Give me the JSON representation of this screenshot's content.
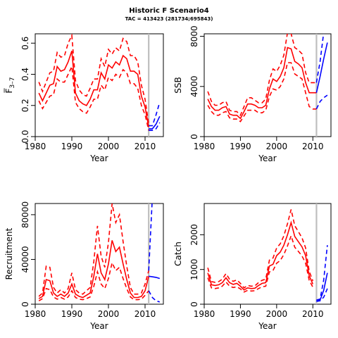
{
  "title": "Historic F Scenario4",
  "subtitle": "TAC = 413423 (281734;695843)",
  "colors": {
    "historic": "#ff0000",
    "projection": "#0000ff",
    "divider": "#bebebe"
  },
  "chart_data": [
    {
      "type": "line",
      "xlabel": "Year",
      "ylabel": "F̅",
      "ylabel_sub": "3–7",
      "xlim": [
        1980,
        2015
      ],
      "ylim": [
        0,
        0.66
      ],
      "xticks": [
        "1980",
        "1990",
        "2000",
        "2010"
      ],
      "yticks": [
        "0.0",
        "0.2",
        "0.4",
        "0.6"
      ],
      "divider_year": 2011,
      "x": [
        1981,
        1982,
        1983,
        1984,
        1985,
        1986,
        1987,
        1988,
        1989,
        1990,
        1991,
        1992,
        1993,
        1994,
        1995,
        1996,
        1997,
        1998,
        1999,
        2000,
        2001,
        2002,
        2003,
        2004,
        2005,
        2006,
        2007,
        2008,
        2009,
        2010,
        2011
      ],
      "series": [
        {
          "values": [
            0.28,
            0.23,
            0.28,
            0.33,
            0.34,
            0.45,
            0.42,
            0.43,
            0.48,
            0.55,
            0.28,
            0.23,
            0.21,
            0.2,
            0.24,
            0.3,
            0.3,
            0.41,
            0.37,
            0.46,
            0.44,
            0.48,
            0.46,
            0.52,
            0.5,
            0.42,
            0.42,
            0.4,
            0.26,
            0.19,
            0.06
          ]
        },
        {
          "values": [
            0.35,
            0.29,
            0.35,
            0.41,
            0.42,
            0.54,
            0.51,
            0.52,
            0.6,
            0.65,
            0.36,
            0.3,
            0.27,
            0.26,
            0.31,
            0.37,
            0.37,
            0.5,
            0.45,
            0.56,
            0.53,
            0.57,
            0.55,
            0.63,
            0.61,
            0.52,
            0.52,
            0.48,
            0.33,
            0.24,
            0.08
          ]
        },
        {
          "values": [
            0.23,
            0.18,
            0.22,
            0.26,
            0.27,
            0.37,
            0.35,
            0.35,
            0.4,
            0.45,
            0.22,
            0.18,
            0.16,
            0.15,
            0.19,
            0.24,
            0.24,
            0.33,
            0.3,
            0.38,
            0.36,
            0.4,
            0.38,
            0.43,
            0.41,
            0.34,
            0.34,
            0.31,
            0.2,
            0.14,
            0.04
          ]
        }
      ],
      "projection_x": [
        2011,
        2012,
        2013,
        2014
      ],
      "projection": [
        {
          "values": [
            0.05,
            0.05,
            0.08,
            0.13
          ]
        },
        {
          "values": [
            0.07,
            0.07,
            0.14,
            0.22
          ]
        },
        {
          "values": [
            0.04,
            0.04,
            0.05,
            0.09
          ]
        }
      ]
    },
    {
      "type": "line",
      "xlabel": "Year",
      "ylabel": "SSB",
      "xlim": [
        1980,
        2015
      ],
      "ylim": [
        0,
        8200
      ],
      "xticks": [
        "1980",
        "1990",
        "2000",
        "2010"
      ],
      "yticks": [
        "0",
        "4000",
        "8000"
      ],
      "divider_year": 2011,
      "x": [
        1981,
        1982,
        1983,
        1984,
        1985,
        1986,
        1987,
        1988,
        1989,
        1990,
        1991,
        1992,
        1993,
        1994,
        1995,
        1996,
        1997,
        1998,
        1999,
        2000,
        2001,
        2002,
        2003,
        2004,
        2005,
        2006,
        2007,
        2008,
        2009,
        2010,
        2011
      ],
      "series": [
        {
          "values": [
            3000,
            2400,
            2100,
            2100,
            2300,
            2400,
            1800,
            1700,
            1700,
            1450,
            2000,
            2600,
            2600,
            2500,
            2300,
            2300,
            2500,
            3800,
            4600,
            4400,
            4800,
            5500,
            7100,
            7000,
            6000,
            5800,
            5500,
            4300,
            3500,
            3500,
            3500
          ]
        },
        {
          "values": [
            3600,
            2800,
            2500,
            2500,
            2700,
            2800,
            2100,
            2000,
            2000,
            1700,
            2400,
            3100,
            3100,
            2900,
            2700,
            2700,
            3000,
            4500,
            5400,
            5200,
            5700,
            6500,
            8300,
            8200,
            7100,
            6900,
            6600,
            5100,
            4300,
            4300,
            4300
          ]
        },
        {
          "values": [
            2500,
            2000,
            1700,
            1700,
            1900,
            2000,
            1500,
            1400,
            1400,
            1200,
            1650,
            2100,
            2100,
            2100,
            1900,
            1900,
            2100,
            3200,
            3800,
            3700,
            4000,
            4600,
            5900,
            5900,
            5000,
            4800,
            4600,
            3500,
            2400,
            2200,
            2200
          ]
        }
      ],
      "projection_x": [
        2011,
        2012,
        2013,
        2014
      ],
      "projection": [
        {
          "values": [
            3500,
            4800,
            6200,
            7500
          ]
        },
        {
          "values": [
            4300,
            6000,
            8300,
            9500
          ]
        },
        {
          "values": [
            2200,
            2800,
            3100,
            3300
          ]
        }
      ]
    },
    {
      "type": "line",
      "xlabel": "Year",
      "ylabel": "Recruitment",
      "xlim": [
        1980,
        2015
      ],
      "ylim": [
        0,
        90000
      ],
      "xticks": [
        "1980",
        "1990",
        "2000",
        "2010"
      ],
      "yticks": [
        "0",
        "40000",
        "80000"
      ],
      "divider_year": 2011,
      "x": [
        1981,
        1982,
        1983,
        1984,
        1985,
        1986,
        1987,
        1988,
        1989,
        1990,
        1991,
        1992,
        1993,
        1994,
        1995,
        1996,
        1997,
        1998,
        1999,
        2000,
        2001,
        2002,
        2003,
        2004,
        2005,
        2006,
        2007,
        2008,
        2009,
        2010,
        2011
      ],
      "series": [
        {
          "values": [
            5000,
            7000,
            22000,
            21000,
            10000,
            7000,
            9000,
            7000,
            10000,
            18000,
            9000,
            7000,
            6000,
            8000,
            10000,
            25000,
            45000,
            28000,
            22000,
            36000,
            57000,
            47000,
            51000,
            36000,
            22000,
            10000,
            6000,
            6000,
            7000,
            12000,
            25000
          ]
        },
        {
          "values": [
            7000,
            10000,
            34000,
            33000,
            15000,
            10000,
            13000,
            10000,
            14000,
            28000,
            13000,
            10000,
            9000,
            12000,
            15000,
            38000,
            70000,
            43000,
            33000,
            55000,
            90000,
            73000,
            80000,
            56000,
            34000,
            15000,
            9000,
            9000,
            10000,
            18000,
            30000
          ]
        },
        {
          "values": [
            3000,
            5000,
            14000,
            13000,
            6500,
            4500,
            6000,
            4500,
            6500,
            12000,
            6000,
            4500,
            4000,
            5000,
            6500,
            16000,
            29000,
            18000,
            14000,
            23000,
            37000,
            30000,
            33000,
            23000,
            14000,
            6500,
            4000,
            4000,
            4500,
            8000,
            12000
          ]
        }
      ],
      "projection_x": [
        2011,
        2012,
        2013,
        2014
      ],
      "projection": [
        {
          "values": [
            25000,
            24500,
            24000,
            23000
          ]
        },
        {
          "values": [
            30000,
            96000,
            98000,
            98000
          ]
        },
        {
          "values": [
            12000,
            6000,
            3000,
            2000
          ]
        }
      ]
    },
    {
      "type": "line",
      "xlabel": "Year",
      "ylabel": "Catch",
      "xlim": [
        1980,
        2015
      ],
      "ylim": [
        0,
        2900
      ],
      "xticks": [
        "1980",
        "1990",
        "2000",
        "2010"
      ],
      "yticks": [
        "0",
        "1000",
        "2000"
      ],
      "divider_year": 2011,
      "x": [
        1981,
        1982,
        1983,
        1984,
        1985,
        1986,
        1987,
        1988,
        1989,
        1990,
        1991,
        1992,
        1993,
        1994,
        1995,
        1996,
        1997,
        1998,
        1999,
        2000,
        2001,
        2002,
        2003,
        2004,
        2005,
        2006,
        2007,
        2008,
        2009,
        2010
      ],
      "series": [
        {
          "values": [
            900,
            560,
            540,
            560,
            620,
            760,
            620,
            570,
            600,
            520,
            410,
            470,
            450,
            460,
            540,
            600,
            620,
            1100,
            1150,
            1400,
            1500,
            1700,
            2000,
            2350,
            1950,
            1800,
            1650,
            1400,
            820,
            580
          ]
        },
        {
          "values": [
            1050,
            650,
            630,
            650,
            720,
            880,
            720,
            660,
            700,
            600,
            470,
            540,
            520,
            530,
            620,
            690,
            720,
            1270,
            1330,
            1620,
            1740,
            1970,
            2320,
            2730,
            2260,
            2090,
            1910,
            1620,
            950,
            670
          ]
        },
        {
          "values": [
            760,
            470,
            450,
            470,
            520,
            640,
            520,
            480,
            500,
            440,
            350,
            400,
            380,
            390,
            450,
            500,
            520,
            930,
            970,
            1180,
            1260,
            1430,
            1680,
            1970,
            1640,
            1520,
            1390,
            1180,
            690,
            490
          ]
        }
      ],
      "projection_x": [
        2011,
        2012,
        2013,
        2014
      ],
      "projection": [
        {
          "values": [
            100,
            120,
            400,
            900
          ]
        },
        {
          "values": [
            120,
            150,
            700,
            1700
          ]
        },
        {
          "values": [
            80,
            100,
            200,
            450
          ]
        }
      ]
    }
  ]
}
